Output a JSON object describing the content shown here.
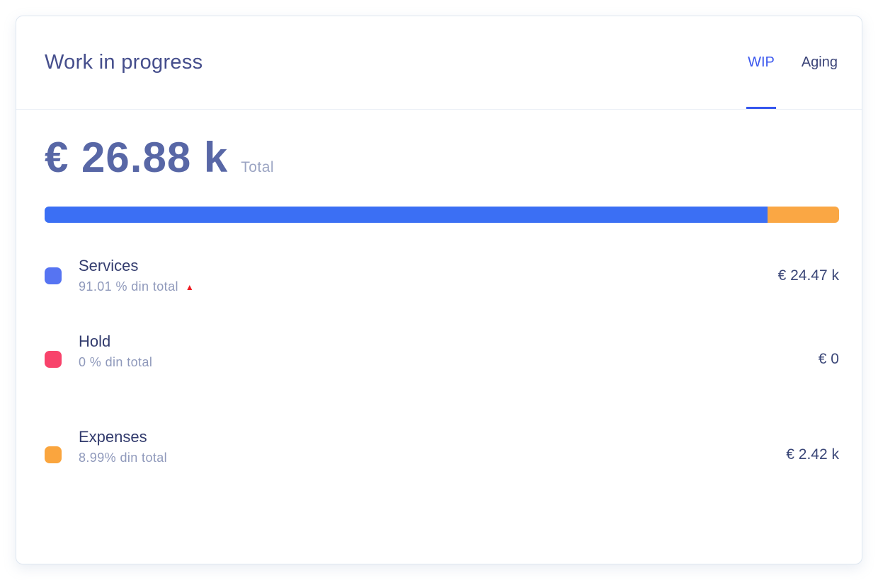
{
  "card": {
    "title": "Work in progress",
    "tabs": [
      {
        "label": "WIP",
        "active": true
      },
      {
        "label": "Aging",
        "active": false
      }
    ],
    "total_display": "€ 26.88 k",
    "total_label": "Total"
  },
  "colors": {
    "active_tab_blue": "#3a57ee",
    "bar_blue": "#3b6ff4",
    "bar_orange": "#faa744",
    "swatch_blue": "#5674f2",
    "swatch_red": "#f8436b",
    "swatch_orange": "#faa53e",
    "trend_up_red": "#ee1d23"
  },
  "chart_data": {
    "type": "bar",
    "title": "Work in progress",
    "total_display": "€ 26.88 k",
    "total_label": "Total",
    "currency": "EUR",
    "categories": [
      "Services",
      "Hold",
      "Expenses"
    ],
    "values": [
      24470,
      0,
      2420
    ],
    "percentages": [
      91.01,
      0,
      8.99
    ],
    "display_values": [
      "€ 24.47 k",
      "€ 0",
      "€ 2.42 k"
    ],
    "segment_colors": [
      "#3b6ff4",
      "#f8436b",
      "#faa744"
    ],
    "legend_position": "bottom"
  },
  "bar": {
    "segments": [
      {
        "name": "Services",
        "percent": 91.01,
        "color": "#3b6ff4"
      },
      {
        "name": "Expenses",
        "percent": 8.99,
        "color": "#faa744"
      }
    ]
  },
  "legend": [
    {
      "name": "Services",
      "percent_label": "91.01 % din total",
      "value_display": "€ 24.47 k",
      "color": "#5674f2",
      "trend": "up",
      "trend_icon": "▲"
    },
    {
      "name": "Hold",
      "percent_label": "0 % din total",
      "value_display": "€ 0",
      "color": "#f8436b",
      "trend": null
    },
    {
      "name": "Expenses",
      "percent_label": "8.99% din total",
      "value_display": "€ 2.42 k",
      "color": "#faa53e",
      "trend": null
    }
  ]
}
